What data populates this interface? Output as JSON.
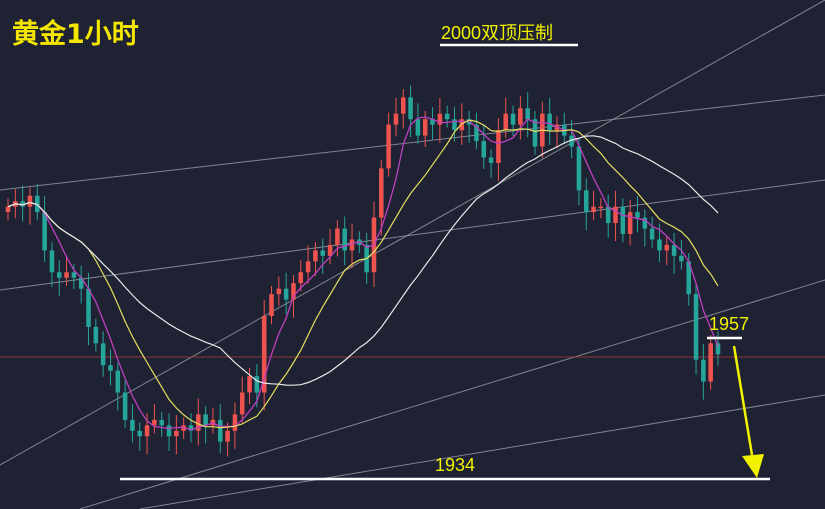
{
  "title": "黄金1小时",
  "annotations": {
    "top_resistance": "2000双顶压制",
    "level_1957": "1957",
    "level_1934": "1934"
  },
  "colors": {
    "background": "#1e2232",
    "up_candle": "#ef5350",
    "down_candle": "#26a69a",
    "ma_fast": "#c03ec0",
    "ma_mid": "#e6e060",
    "ma_slow": "#e8e8e8",
    "annotation": "#f2f200",
    "support_line": "#ffffff",
    "price_line": "#b23b3b",
    "trendlines": "#9a9ea8",
    "arrow": "#f2f200"
  },
  "chart_data": {
    "type": "candlestick",
    "title": "黄金1小时",
    "timeframe": "1 hour",
    "y_estimated_range": [
      1928,
      2003
    ],
    "x": "candle index",
    "key_levels": [
      {
        "label": "2000双顶压制",
        "value": 2000
      },
      {
        "label": "1957",
        "value": 1957
      },
      {
        "label": "1934",
        "value": 1934
      }
    ],
    "close_series": [
      1978,
      1979,
      1978,
      1980,
      1977,
      1970,
      1966,
      1965,
      1966,
      1965,
      1963,
      1956,
      1953,
      1949,
      1948,
      1944,
      1939,
      1937,
      1936,
      1938,
      1939,
      1938,
      1936,
      1937,
      1938,
      1937,
      1940,
      1938,
      1939,
      1935,
      1937,
      1940,
      1944,
      1947,
      1944,
      1958,
      1962,
      1963,
      1961,
      1964,
      1966,
      1968,
      1970,
      1969,
      1971,
      1974,
      1970,
      1972,
      1971,
      1966,
      1976,
      1985,
      1993,
      1995,
      1998,
      1994,
      1991,
      1994,
      1993,
      1995,
      1994,
      1992,
      1994,
      1993,
      1990,
      1987,
      1986,
      1992,
      1995,
      1993,
      1996,
      1994,
      1989,
      1995,
      1992,
      1993,
      1991,
      1989,
      1981,
      1977,
      1978,
      1978,
      1975,
      1978,
      1973,
      1977,
      1976,
      1974,
      1972,
      1970,
      1971,
      1969,
      1968,
      1962,
      1950,
      1946,
      1953,
      1951
    ],
    "series": [
      {
        "name": "",
        "type": "ma_fast"
      },
      {
        "name": "",
        "type": "ma_mid"
      },
      {
        "name": "",
        "type": "ma_slow"
      }
    ],
    "projection": "arrow pointing down toward 1934"
  }
}
